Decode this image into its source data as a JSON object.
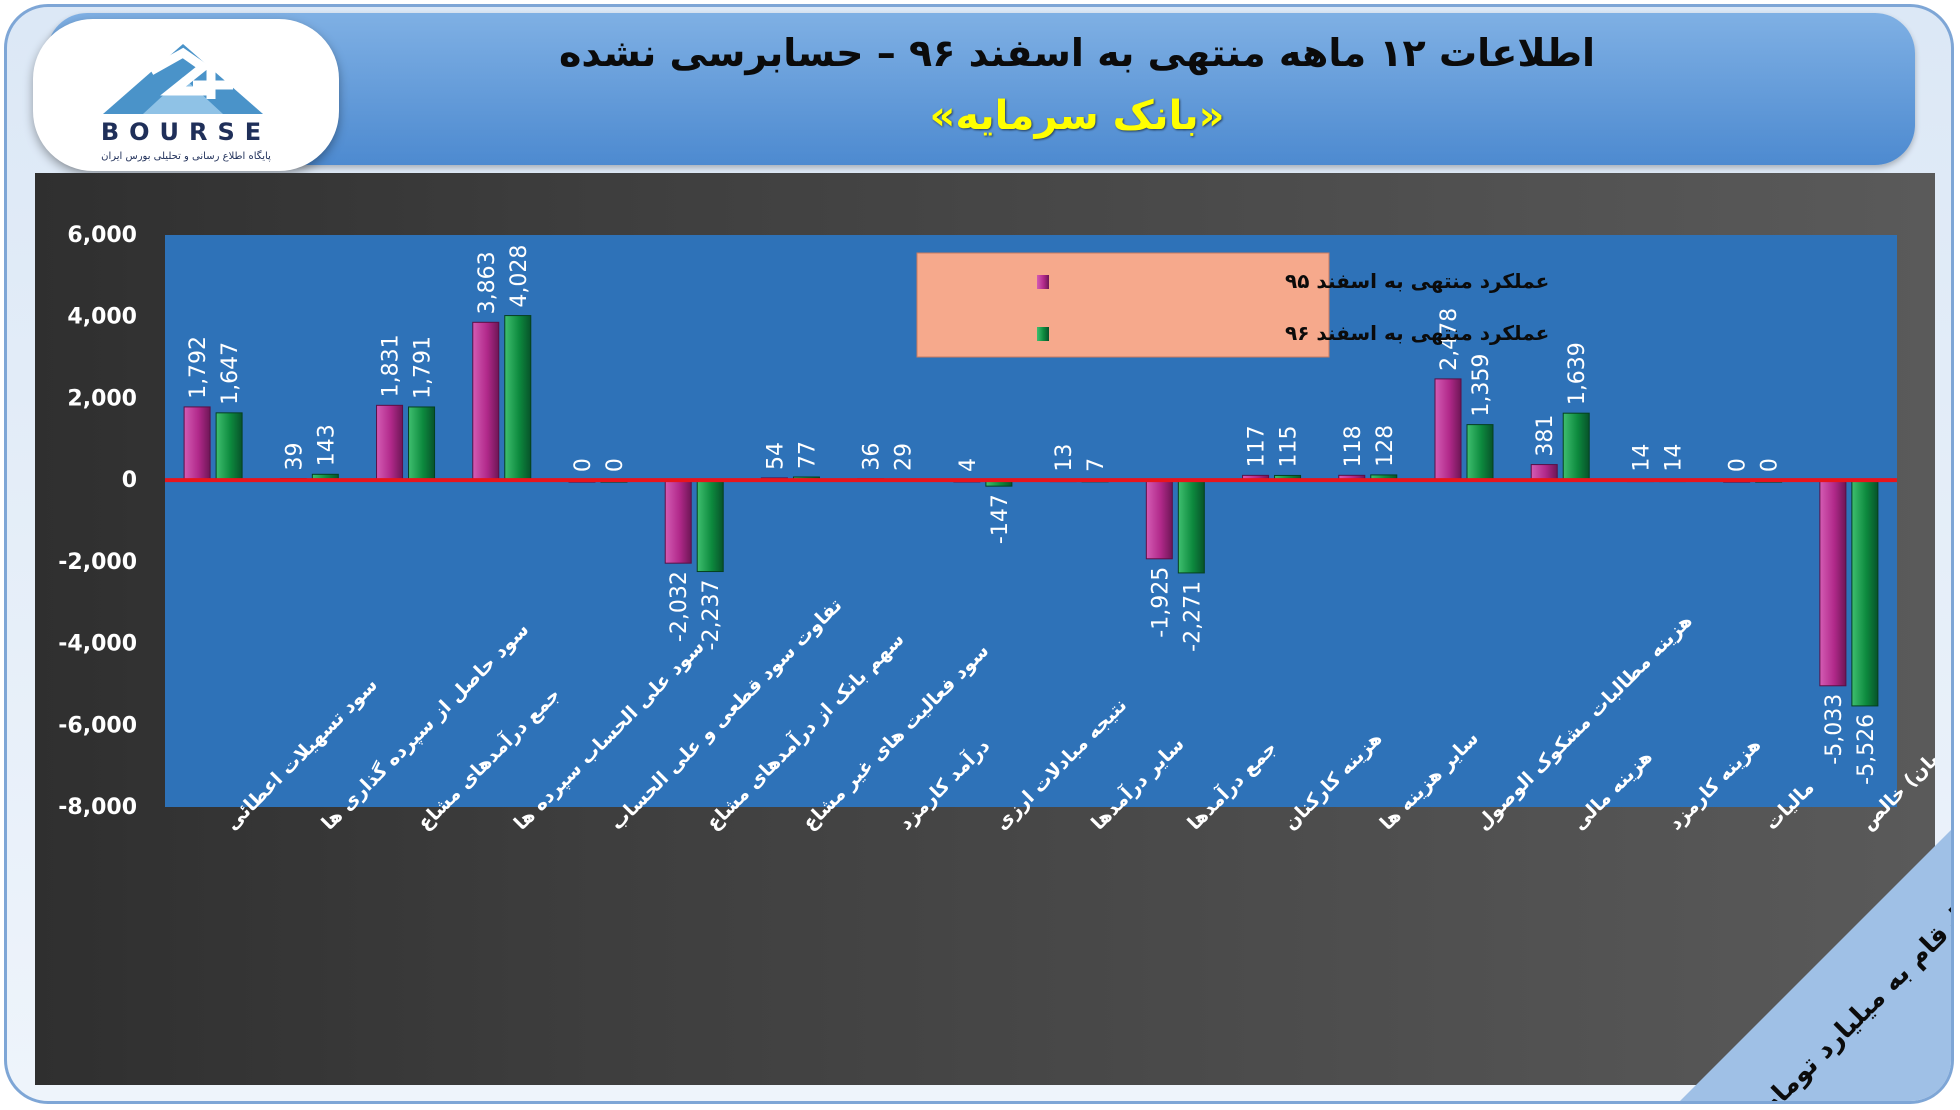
{
  "logo": {
    "brand_text": "BOURSE",
    "tagline": "پایگاه اطلاع رسانی و تحلیلی بورس ایران",
    "number_mark": "24"
  },
  "header": {
    "title": "اطلاعات ۱۲ ماهه منتهی به اسفند ۹۶ – حسابرسی نشده",
    "subtitle": "«بانک سرمایه»"
  },
  "unit_note": "ارقام به میلیارد تومان",
  "colors": {
    "series1": "#b1298a",
    "series2": "#0d8a3e",
    "plot_bg": "#2e72b8",
    "zero_line": "#e8141c",
    "legend_bg": "#f6a98c"
  },
  "chart_data": {
    "type": "bar",
    "ylim": [
      -8000,
      6000
    ],
    "yticks": [
      "6,000",
      "4,000",
      "2,000",
      "0",
      "-2,000",
      "-4,000",
      "-6,000",
      "-8,000"
    ],
    "ytick_values": [
      6000,
      4000,
      2000,
      0,
      -2000,
      -4000,
      -6000,
      -8000
    ],
    "grid": false,
    "legend_position": "top-center",
    "categories": [
      "سود تسهیلات اعطائی",
      "سود حاصل از سپرده گذاری ها",
      "جمع درآمدهای مشاع",
      "سود علی الحساب سپرده ها",
      "تفاوت سود قطعی و علی الحساب",
      "سهم بانک از درآمدهای مشاع",
      "سود فعالیت های غیر مشاع",
      "درآمد کارمزد",
      "نتیجه مبادلات ارزی",
      "سایر درآمدها",
      "جمع درآمدها",
      "هزینه کارکنان",
      "سایر هزینه ها",
      "هزینه مطالبات مشکوک الوصول",
      "هزینه مالی",
      "هزینه کارمزد",
      "مالیات",
      "سود (زیان) خالص"
    ],
    "series": [
      {
        "name": "عملکرد منتهی به اسفند ۹۵",
        "values": [
          1792,
          39,
          1831,
          3863,
          0,
          -2032,
          54,
          36,
          4,
          13,
          -1925,
          117,
          118,
          2478,
          381,
          14,
          0,
          -5033
        ],
        "labels": [
          "1,792",
          "39",
          "1,831",
          "3,863",
          "0",
          "-2,032",
          "54",
          "36",
          "4",
          "13",
          "-1,925",
          "117",
          "118",
          "2,478",
          "381",
          "14",
          "0",
          "-5,033"
        ]
      },
      {
        "name": "عملکرد منتهی به اسفند ۹۶",
        "values": [
          1647,
          143,
          1791,
          4028,
          0,
          -2237,
          77,
          29,
          -147,
          7,
          -2271,
          115,
          128,
          1359,
          1639,
          14,
          0,
          -5526
        ],
        "labels": [
          "1,647",
          "143",
          "1,791",
          "4,028",
          "0",
          "-2,237",
          "77",
          "29",
          "-147",
          "7",
          "-2,271",
          "115",
          "128",
          "1,359",
          "1,639",
          "14",
          "0",
          "-5,526"
        ]
      }
    ]
  }
}
